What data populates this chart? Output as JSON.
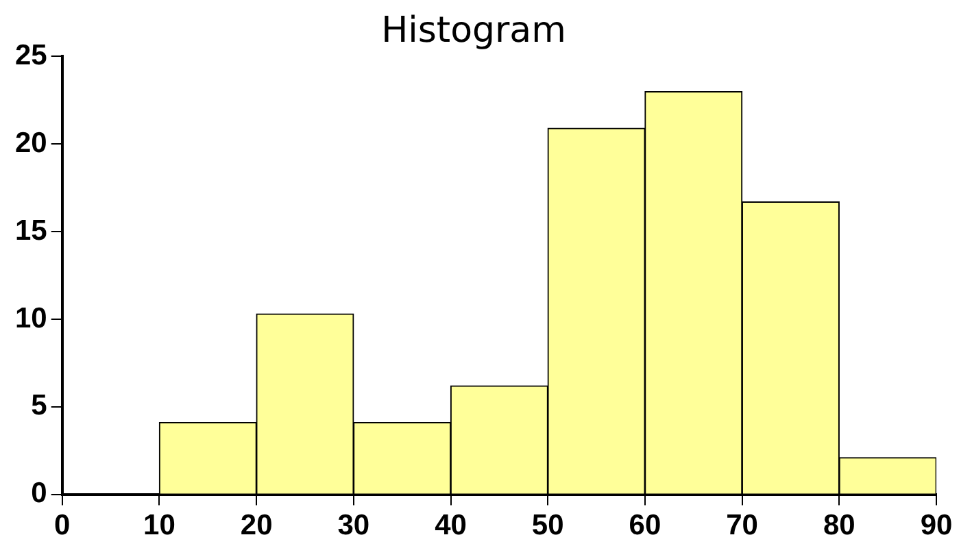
{
  "chart_data": {
    "type": "histogram",
    "title": "Histogram",
    "bins": [
      10,
      20,
      30,
      40,
      50,
      60,
      70,
      80,
      90
    ],
    "values": [
      4.1,
      10.3,
      4.1,
      6.2,
      20.9,
      23,
      16.7,
      2.1
    ],
    "color": "#ffff99",
    "xlim": [
      0,
      90
    ],
    "xticks": [
      0,
      10,
      20,
      30,
      40,
      50,
      60,
      70,
      80,
      90
    ],
    "ylim": [
      0,
      25
    ],
    "yticks": [
      0,
      5,
      10,
      15,
      20,
      25
    ],
    "grid": false,
    "legend": false
  }
}
